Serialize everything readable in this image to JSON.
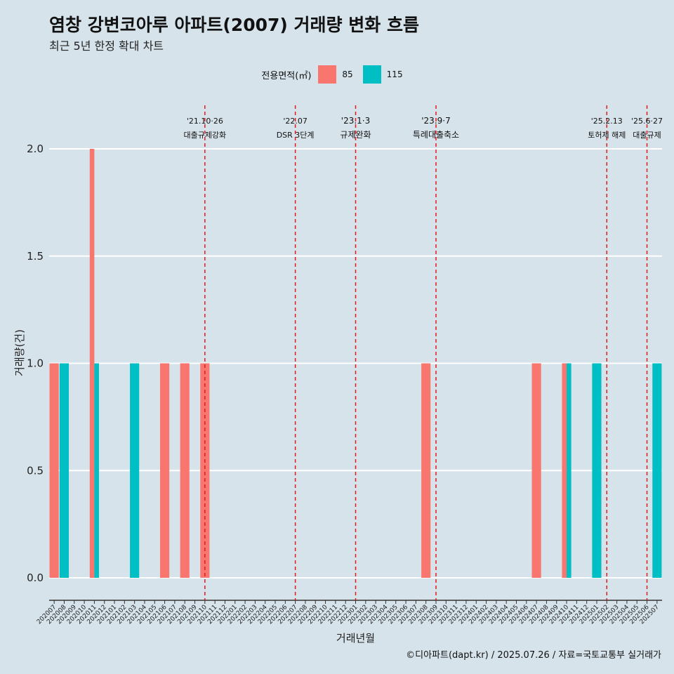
{
  "title": "염창 강변코아루 아파트(2007) 거래량 변화 흐름",
  "subtitle": "최근 5년 한정 확대 차트",
  "caption": "©디아파트(dapt.kr) / 2025.07.26 / 자료=국토교통부 실거래가",
  "legend": {
    "title": "전용면적(㎡)",
    "items": [
      {
        "label": "85",
        "color": "#f8766d"
      },
      {
        "label": "115",
        "color": "#00bfc4"
      }
    ]
  },
  "chart_data": {
    "type": "bar",
    "xlabel": "거래년월",
    "ylabel": "거래량(건)",
    "ylim": [
      0,
      2
    ],
    "yticks": [
      "0.0",
      "0.5",
      "1.0",
      "1.5",
      "2.0"
    ],
    "categories": [
      "202007",
      "202008",
      "202009",
      "202010",
      "202011",
      "202012",
      "202101",
      "202102",
      "202103",
      "202104",
      "202105",
      "202106",
      "202107",
      "202108",
      "202109",
      "202110",
      "202111",
      "202112",
      "202201",
      "202202",
      "202203",
      "202204",
      "202205",
      "202206",
      "202207",
      "202208",
      "202209",
      "202210",
      "202211",
      "202212",
      "202301",
      "202302",
      "202303",
      "202304",
      "202305",
      "202306",
      "202307",
      "202308",
      "202309",
      "202310",
      "202311",
      "202312",
      "202401",
      "202402",
      "202403",
      "202404",
      "202405",
      "202406",
      "202407",
      "202408",
      "202409",
      "202410",
      "202411",
      "202412",
      "202501",
      "202502",
      "202503",
      "202504",
      "202505",
      "202506",
      "202507"
    ],
    "series": [
      {
        "name": "85",
        "color": "#f8766d",
        "values": [
          1,
          0,
          0,
          0,
          2,
          0,
          0,
          0,
          0,
          0,
          0,
          1,
          0,
          1,
          0,
          1,
          0,
          0,
          0,
          0,
          0,
          0,
          0,
          0,
          0,
          0,
          0,
          0,
          0,
          0,
          0,
          0,
          0,
          0,
          0,
          0,
          0,
          1,
          0,
          0,
          0,
          0,
          0,
          0,
          0,
          0,
          0,
          0,
          1,
          0,
          0,
          1,
          0,
          0,
          0,
          0,
          0,
          0,
          0,
          0,
          0
        ]
      },
      {
        "name": "115",
        "color": "#00bfc4",
        "values": [
          0,
          1,
          0,
          0,
          1,
          0,
          0,
          0,
          1,
          0,
          0,
          0,
          0,
          0,
          0,
          0,
          0,
          0,
          0,
          0,
          0,
          0,
          0,
          0,
          0,
          0,
          0,
          0,
          0,
          0,
          0,
          0,
          0,
          0,
          0,
          0,
          0,
          0,
          0,
          0,
          0,
          0,
          0,
          0,
          0,
          0,
          0,
          0,
          0,
          0,
          0,
          1,
          0,
          0,
          1,
          0,
          0,
          0,
          0,
          0,
          1
        ]
      }
    ],
    "grid": true,
    "events": [
      {
        "category": "202110",
        "date": "'21.10·26",
        "label": "대출규제강화"
      },
      {
        "category": "202207",
        "date": "'22.07",
        "label": "DSR 3단계"
      },
      {
        "category": "202301",
        "date": "'23.1·3",
        "label": "규제완화"
      },
      {
        "category": "202309",
        "date": "'23.9·7",
        "label": "특례대출축소"
      },
      {
        "category": "202502",
        "date": "'25.2.13",
        "label": "토허제 해제"
      },
      {
        "category": "202506",
        "date": "'25.6·27",
        "label": "대출규제"
      }
    ]
  }
}
